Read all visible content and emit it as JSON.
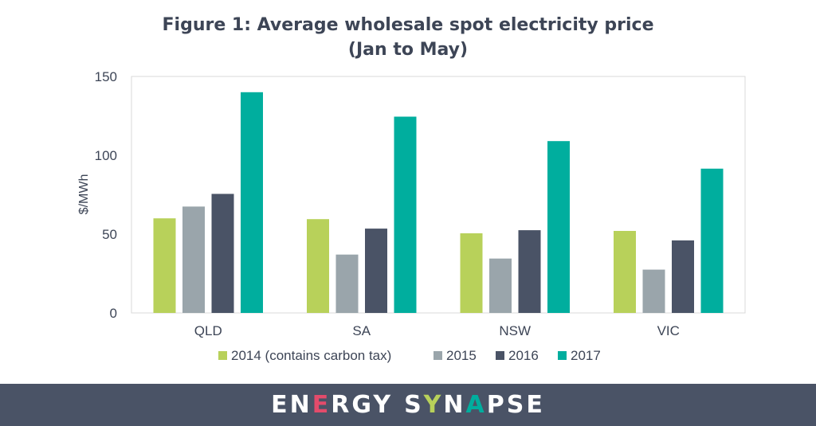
{
  "chart_data": {
    "type": "bar",
    "title_line1": "Figure 1: Average wholesale spot electricity price",
    "title_line2": "(Jan to May)",
    "ylabel": "$/MWh",
    "xlabel": "",
    "ylim": [
      0,
      150
    ],
    "yticks": [
      "0",
      "50",
      "100",
      "150"
    ],
    "ytick_values": [
      0,
      50,
      100,
      150
    ],
    "categories": [
      "QLD",
      "SA",
      "NSW",
      "VIC"
    ],
    "series": [
      {
        "name": "2014 (contains carbon tax)",
        "color": "#b8d15a",
        "values": [
          60,
          59.5,
          50.5,
          52
        ]
      },
      {
        "name": "2015",
        "color": "#9aa5ab",
        "values": [
          67.5,
          37,
          34.5,
          27.5
        ]
      },
      {
        "name": "2016",
        "color": "#4a5366",
        "values": [
          75.5,
          53.5,
          52.5,
          46
        ]
      },
      {
        "name": "2017",
        "color": "#00ae9e",
        "values": [
          140,
          124.5,
          109,
          91.5
        ]
      }
    ],
    "grid": false,
    "legend_position": "bottom"
  },
  "footer": {
    "brand_word1_letters": [
      {
        "ch": "E",
        "color": "#ffffff"
      },
      {
        "ch": "N",
        "color": "#ffffff"
      },
      {
        "ch": "E",
        "color": "#e34b6b"
      },
      {
        "ch": "R",
        "color": "#ffffff"
      },
      {
        "ch": "G",
        "color": "#ffffff"
      },
      {
        "ch": "Y",
        "color": "#ffffff"
      }
    ],
    "brand_word2_letters": [
      {
        "ch": "S",
        "color": "#ffffff"
      },
      {
        "ch": "Y",
        "color": "#b8d15a"
      },
      {
        "ch": "N",
        "color": "#ffffff"
      },
      {
        "ch": "A",
        "color": "#00ae9e"
      },
      {
        "ch": "P",
        "color": "#ffffff"
      },
      {
        "ch": "S",
        "color": "#ffffff"
      },
      {
        "ch": "E",
        "color": "#ffffff"
      }
    ]
  }
}
